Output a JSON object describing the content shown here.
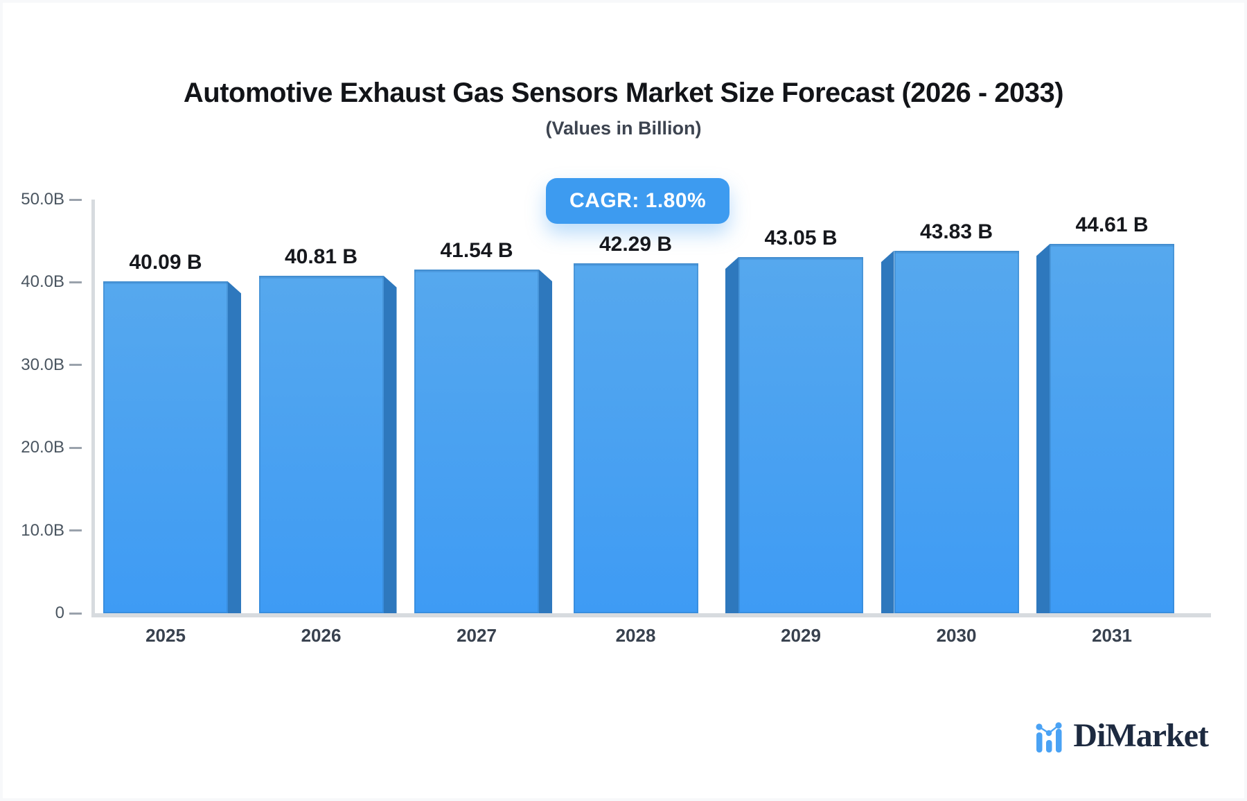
{
  "title": "Automotive Exhaust Gas Sensors Market Size Forecast (2026 - 2033)",
  "subtitle": "(Values in Billion)",
  "badge": {
    "label": "CAGR: 1.80%",
    "color": "#3d9bf0"
  },
  "brand": {
    "name": "DiMarket",
    "icon": "bar-chart-logo-icon",
    "text_color": "#1d2a40",
    "accent_color": "#4aa2f4"
  },
  "colors": {
    "bar_front_top": "#56a8ee",
    "bar_front_bottom": "#3e9bf4",
    "bar_side": "#2e78bd",
    "axis": "#d7dbdf",
    "tick": "#9aa2ac"
  },
  "chart_data": {
    "type": "bar",
    "title": "Automotive Exhaust Gas Sensors Market Size Forecast (2026 - 2033)",
    "subtitle": "(Values in Billion)",
    "categories": [
      "2025",
      "2026",
      "2027",
      "2028",
      "2029",
      "2030",
      "2031"
    ],
    "values": [
      40.09,
      40.81,
      41.54,
      42.29,
      43.05,
      43.83,
      44.61
    ],
    "value_labels": [
      "40.09 B",
      "40.81 B",
      "41.54 B",
      "42.29 B",
      "43.05 B",
      "43.83 B",
      "44.61 B"
    ],
    "xlabel": "",
    "ylabel": "",
    "ylim": [
      0,
      50
    ],
    "ytick_labels": [
      "50.0B",
      "40.0B",
      "30.0B",
      "20.0B",
      "10.0B",
      "0"
    ],
    "ytick_values": [
      50,
      40,
      30,
      20,
      10,
      0
    ],
    "grid": false,
    "legend": false,
    "annotation": "CAGR: 1.80%",
    "style": "3d-bevel, bevel faces point toward chart center"
  }
}
